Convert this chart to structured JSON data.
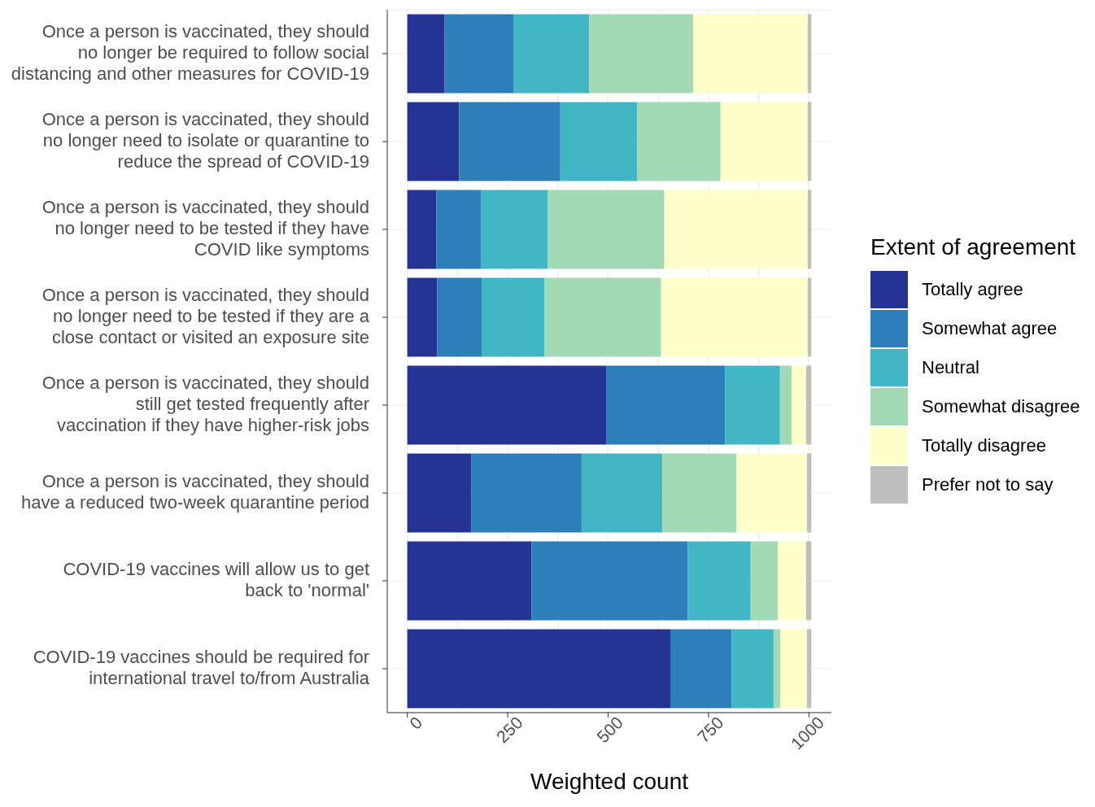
{
  "chart_data": {
    "type": "bar",
    "orientation": "horizontal",
    "stacked": true,
    "categories": [
      "Once a person is vaccinated, they should no longer be required to follow social distancing and other measures for COVID-19",
      "Once a person is vaccinated, they should no longer need to isolate or quarantine to reduce the spread of COVID-19",
      "Once a person is vaccinated, they should no longer need to be tested if they have COVID like symptoms",
      "Once a person is vaccinated, they should no longer need to be tested if they are a close contact or visited an exposure site",
      "Once a person is vaccinated, they should still get tested frequently after vaccination if they have higher-risk jobs",
      "Once a person is vaccinated, they should have a reduced two-week quarantine period",
      "COVID-19 vaccines will allow us to get back to 'normal'",
      "COVID-19 vaccines should be required for international travel to/from Australia"
    ],
    "series": [
      {
        "name": "Totally agree",
        "color": "#253494",
        "values": [
          93,
          129,
          72,
          74,
          495,
          159,
          309,
          655
        ]
      },
      {
        "name": "Somewhat agree",
        "color": "#2c7fb8",
        "values": [
          171,
          252,
          111,
          111,
          296,
          275,
          389,
          153
        ]
      },
      {
        "name": "Neutral",
        "color": "#41b6c4",
        "values": [
          189,
          191,
          166,
          156,
          137,
          201,
          157,
          104
        ]
      },
      {
        "name": "Somewhat disagree",
        "color": "#a1dab4",
        "values": [
          259,
          208,
          291,
          291,
          29,
          184,
          68,
          17
        ]
      },
      {
        "name": "Totally disagree",
        "color": "#ffffcc",
        "values": [
          285,
          217,
          357,
          365,
          36,
          176,
          70,
          66
        ]
      },
      {
        "name": "Prefer not to say",
        "color": "#bebebe",
        "values": [
          9,
          9,
          9,
          9,
          13,
          11,
          13,
          11
        ]
      }
    ],
    "xlabel": "Weighted count",
    "legend_title": "Extent of agreement",
    "legend": "right",
    "xlim": [
      -50,
      1056
    ],
    "xticks": [
      0,
      250,
      500,
      750,
      1000
    ],
    "grid": true
  }
}
